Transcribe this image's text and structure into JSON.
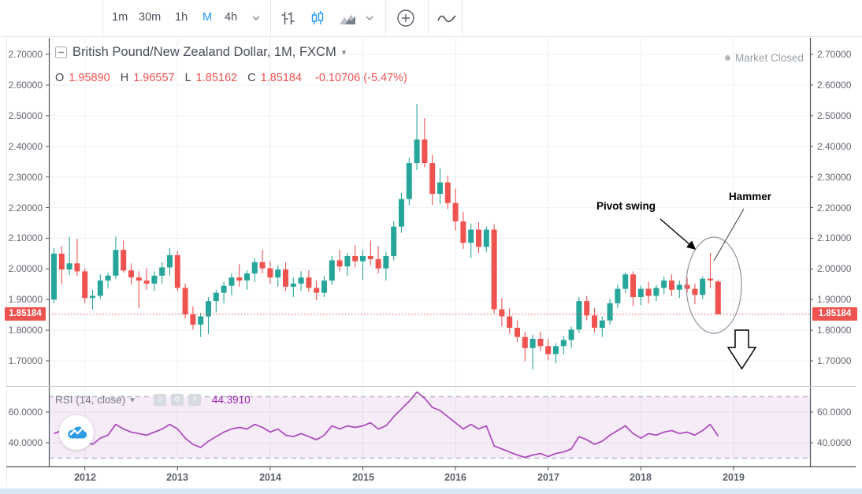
{
  "toolbar": {
    "intervals": [
      {
        "label": "1m",
        "active": false
      },
      {
        "label": "30m",
        "active": false
      },
      {
        "label": "1h",
        "active": false
      },
      {
        "label": "M",
        "active": true
      },
      {
        "label": "4h",
        "active": false
      }
    ],
    "icon_names": [
      "interval-dropdown-caret",
      "bars-style-icon",
      "candles-style-icon",
      "area-style-icon",
      "style-dropdown-caret",
      "compare-plus-icon",
      "indicator-line-icon"
    ]
  },
  "legend": {
    "symbol_title": "British Pound/New Zealand Dollar, 1M, FXCM",
    "o_label": "O",
    "o_value": "1.95890",
    "h_label": "H",
    "h_value": "1.96557",
    "l_label": "L",
    "l_value": "1.85162",
    "c_label": "C",
    "c_value": "1.85184",
    "change": "-0.10706 (-5.47%)",
    "market_status": "Market Closed"
  },
  "rsi_legend": {
    "label": "RSI (14, close)",
    "value": "44.3910",
    "buttons": {
      "hide": "⊙",
      "settings": "⚙",
      "close": "✕"
    }
  },
  "axes": {
    "price_labels": [
      "2.70000",
      "2.60000",
      "2.50000",
      "2.40000",
      "2.30000",
      "2.20000",
      "2.10000",
      "2.00000",
      "1.90000",
      "1.80000",
      "1.70000"
    ],
    "rsi_labels": [
      "60.0000",
      "40.0000"
    ],
    "time_labels": [
      "2012",
      "2013",
      "2014",
      "2015",
      "2016",
      "2017",
      "2018",
      "2019"
    ],
    "last_price_label": "1.85184"
  },
  "annotations": {
    "pivot_swing": "Pivot swing",
    "hammer": "Hammer"
  },
  "colors": {
    "up": "#26A69A",
    "down": "#EF5350",
    "rsi_line": "#AB47BC",
    "rsi_band": "rgba(171,71,188,0.10)",
    "price_line": "#EF5350",
    "accent_blue": "#2196F3"
  },
  "chart_data": {
    "type": "candlestick",
    "symbol": "British Pound/New Zealand Dollar",
    "timeframe": "1M",
    "exchange": "FXCM",
    "ylim": [
      1.62,
      2.75
    ],
    "x_years": [
      "2012",
      "2013",
      "2014",
      "2015",
      "2016",
      "2017",
      "2018",
      "2019"
    ],
    "price_line_value": 1.85184,
    "last_ohlc": {
      "open": 1.9589,
      "high": 1.96557,
      "low": 1.85162,
      "close": 1.85184,
      "change": -0.10706,
      "change_pct": -5.47
    },
    "candles": [
      [
        1.9,
        2.068,
        1.888,
        2.05
      ],
      [
        2.05,
        2.075,
        1.95,
        1.998
      ],
      [
        1.998,
        2.105,
        1.98,
        2.018
      ],
      [
        2.018,
        2.098,
        1.978,
        1.992
      ],
      [
        1.992,
        2.002,
        1.888,
        1.905
      ],
      [
        1.905,
        1.932,
        1.868,
        1.912
      ],
      [
        1.912,
        1.982,
        1.902,
        1.962
      ],
      [
        1.962,
        1.988,
        1.936,
        1.978
      ],
      [
        1.978,
        2.105,
        1.968,
        2.062
      ],
      [
        2.062,
        2.092,
        1.988,
        1.995
      ],
      [
        1.995,
        2.018,
        1.948,
        1.972
      ],
      [
        1.972,
        1.992,
        1.872,
        1.962
      ],
      [
        1.962,
        2.002,
        1.932,
        1.952
      ],
      [
        1.952,
        1.992,
        1.928,
        1.978
      ],
      [
        1.978,
        2.022,
        1.952,
        2.005
      ],
      [
        2.005,
        2.068,
        1.978,
        2.045
      ],
      [
        2.045,
        2.058,
        1.928,
        1.938
      ],
      [
        1.938,
        1.952,
        1.838,
        1.852
      ],
      [
        1.852,
        1.878,
        1.802,
        1.818
      ],
      [
        1.818,
        1.856,
        1.778,
        1.845
      ],
      [
        1.845,
        1.908,
        1.788,
        1.895
      ],
      [
        1.895,
        1.932,
        1.858,
        1.922
      ],
      [
        1.922,
        1.958,
        1.888,
        1.945
      ],
      [
        1.945,
        1.985,
        1.915,
        1.972
      ],
      [
        1.972,
        2.015,
        1.942,
        1.962
      ],
      [
        1.962,
        1.995,
        1.932,
        1.985
      ],
      [
        1.985,
        2.035,
        1.958,
        2.022
      ],
      [
        2.022,
        2.062,
        1.985,
        2.002
      ],
      [
        2.002,
        2.025,
        1.952,
        1.972
      ],
      [
        1.972,
        2.012,
        1.942,
        1.998
      ],
      [
        1.998,
        2.022,
        1.928,
        1.942
      ],
      [
        1.942,
        1.972,
        1.908,
        1.952
      ],
      [
        1.952,
        1.992,
        1.928,
        1.972
      ],
      [
        1.972,
        1.995,
        1.925,
        1.938
      ],
      [
        1.938,
        1.962,
        1.898,
        1.922
      ],
      [
        1.922,
        1.978,
        1.908,
        1.962
      ],
      [
        1.962,
        2.042,
        1.948,
        2.028
      ],
      [
        2.028,
        2.062,
        1.992,
        2.008
      ],
      [
        2.008,
        2.052,
        1.978,
        2.042
      ],
      [
        2.042,
        2.078,
        2.005,
        2.025
      ],
      [
        2.025,
        2.062,
        1.965,
        2.042
      ],
      [
        2.042,
        2.092,
        2.012,
        2.032
      ],
      [
        2.032,
        2.075,
        1.985,
        2.002
      ],
      [
        2.002,
        2.055,
        1.962,
        2.042
      ],
      [
        2.042,
        2.155,
        2.028,
        2.138
      ],
      [
        2.138,
        2.248,
        2.118,
        2.228
      ],
      [
        2.228,
        2.362,
        2.208,
        2.345
      ],
      [
        2.345,
        2.538,
        2.322,
        2.422
      ],
      [
        2.422,
        2.492,
        2.332,
        2.345
      ],
      [
        2.345,
        2.372,
        2.208,
        2.245
      ],
      [
        2.245,
        2.328,
        2.212,
        2.282
      ],
      [
        2.282,
        2.305,
        2.195,
        2.215
      ],
      [
        2.215,
        2.262,
        2.125,
        2.155
      ],
      [
        2.155,
        2.185,
        2.065,
        2.085
      ],
      [
        2.085,
        2.148,
        2.035,
        2.128
      ],
      [
        2.128,
        2.152,
        2.052,
        2.072
      ],
      [
        2.072,
        2.138,
        2.055,
        2.128
      ],
      [
        2.128,
        2.145,
        1.856,
        1.868
      ],
      [
        1.868,
        1.905,
        1.812,
        1.845
      ],
      [
        1.845,
        1.872,
        1.788,
        1.808
      ],
      [
        1.808,
        1.832,
        1.762,
        1.778
      ],
      [
        1.778,
        1.795,
        1.698,
        1.742
      ],
      [
        1.742,
        1.785,
        1.672,
        1.772
      ],
      [
        1.772,
        1.795,
        1.732,
        1.748
      ],
      [
        1.748,
        1.772,
        1.702,
        1.722
      ],
      [
        1.722,
        1.758,
        1.692,
        1.748
      ],
      [
        1.748,
        1.782,
        1.722,
        1.768
      ],
      [
        1.768,
        1.812,
        1.742,
        1.802
      ],
      [
        1.802,
        1.908,
        1.792,
        1.895
      ],
      [
        1.895,
        1.912,
        1.832,
        1.848
      ],
      [
        1.848,
        1.872,
        1.792,
        1.808
      ],
      [
        1.808,
        1.845,
        1.778,
        1.832
      ],
      [
        1.832,
        1.902,
        1.818,
        1.888
      ],
      [
        1.888,
        1.948,
        1.872,
        1.935
      ],
      [
        1.935,
        1.988,
        1.922,
        1.982
      ],
      [
        1.982,
        1.992,
        1.878,
        1.908
      ],
      [
        1.908,
        1.945,
        1.882,
        1.935
      ],
      [
        1.935,
        1.958,
        1.888,
        1.912
      ],
      [
        1.912,
        1.948,
        1.895,
        1.938
      ],
      [
        1.938,
        1.975,
        1.918,
        1.962
      ],
      [
        1.962,
        1.982,
        1.912,
        1.932
      ],
      [
        1.932,
        1.962,
        1.905,
        1.948
      ],
      [
        1.948,
        1.972,
        1.922,
        1.935
      ],
      [
        1.935,
        1.952,
        1.885,
        1.915
      ],
      [
        1.915,
        1.975,
        1.902,
        1.968
      ],
      [
        1.968,
        2.052,
        1.938,
        1.962
      ],
      [
        1.9589,
        1.96557,
        1.85162,
        1.85184
      ]
    ],
    "rsi": {
      "period": 14,
      "source": "close",
      "overbought": 70,
      "oversold": 30,
      "last_value": 44.391,
      "values": [
        46,
        48,
        47,
        45,
        41,
        39,
        43,
        45,
        52,
        49,
        47,
        46,
        45,
        47,
        49,
        52,
        49,
        43,
        39,
        37,
        41,
        44,
        47,
        49,
        50,
        49,
        52,
        50,
        47,
        49,
        45,
        44,
        46,
        44,
        42,
        45,
        51,
        49,
        51,
        50,
        51,
        53,
        49,
        51,
        57,
        62,
        67,
        73,
        69,
        63,
        61,
        57,
        53,
        49,
        52,
        49,
        51,
        38,
        36,
        34,
        32,
        30.5,
        32,
        33,
        31,
        33,
        34,
        36,
        44,
        42,
        39,
        41,
        45,
        48,
        51,
        46,
        43,
        46,
        45,
        47,
        48,
        46,
        47,
        45,
        48,
        52,
        44.39
      ]
    }
  }
}
